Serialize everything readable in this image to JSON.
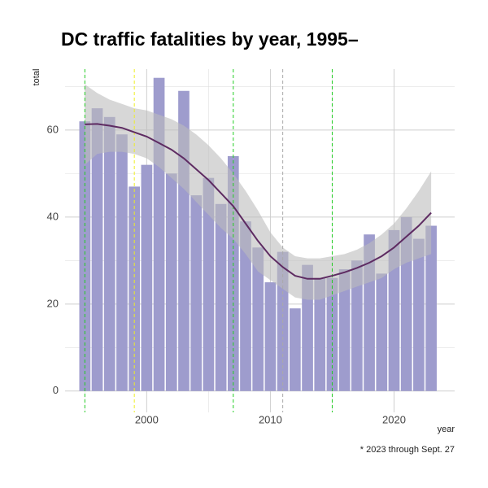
{
  "chart_data": {
    "type": "bar",
    "title": "DC traffic fatalities by year, 1995–",
    "x_label": "year",
    "y_label": "total",
    "caption": "* 2023 through Sept. 27",
    "x": [
      1995,
      1996,
      1997,
      1998,
      1999,
      2000,
      2001,
      2002,
      2003,
      2004,
      2005,
      2006,
      2007,
      2008,
      2009,
      2010,
      2011,
      2012,
      2013,
      2014,
      2015,
      2016,
      2017,
      2018,
      2019,
      2020,
      2021,
      2022,
      2023
    ],
    "values": [
      62,
      65,
      63,
      59,
      47,
      52,
      72,
      50,
      69,
      45,
      49,
      43,
      54,
      39,
      33,
      25,
      32,
      19,
      29,
      26,
      26,
      28,
      30,
      36,
      27,
      37,
      40,
      35,
      38
    ],
    "color": "#9e9ccd",
    "smooth": {
      "color": "#5e2b62",
      "band_color": "#bdbdbd",
      "values": [
        61.3,
        61.4,
        61,
        60.5,
        59.5,
        58.5,
        57,
        55.5,
        53.5,
        51,
        48.5,
        45.5,
        42.5,
        38.5,
        34.5,
        31,
        28.5,
        26.5,
        25.8,
        25.8,
        26.5,
        27.3,
        28.3,
        29.5,
        31,
        33,
        35.5,
        38,
        41
      ],
      "upper": [
        70.5,
        68.5,
        67,
        66,
        65,
        64.5,
        63.5,
        62.5,
        61,
        59,
        56.5,
        53.5,
        50,
        46,
        41.5,
        36.5,
        33,
        31,
        30.5,
        30.5,
        31,
        31.5,
        32.5,
        34,
        36,
        38.5,
        42,
        46,
        50.5
      ],
      "lower": [
        52,
        54.5,
        55,
        55,
        54.5,
        53.5,
        51.5,
        49,
        46.5,
        43.5,
        40.5,
        37.5,
        35,
        31.5,
        27.5,
        25.5,
        23.5,
        21.5,
        21,
        21,
        22,
        23,
        24,
        25,
        26,
        28,
        29.5,
        30.5,
        31.5
      ]
    },
    "vlines": [
      {
        "x": 1995,
        "color": "#22cc22"
      },
      {
        "x": 1999,
        "color": "#eeee22"
      },
      {
        "x": 2007,
        "color": "#22cc22"
      },
      {
        "x": 2011,
        "color": "#aaaaaa"
      },
      {
        "x": 2015,
        "color": "#22cc22"
      }
    ],
    "xlim": [
      1993.4,
      2024.9
    ],
    "ylim": [
      -4.9,
      74
    ],
    "xticks": [
      2000,
      2010,
      2020
    ],
    "yticks": [
      0,
      20,
      40,
      60
    ],
    "xminor": [
      1995,
      2005,
      2015
    ],
    "yminor": [
      10,
      30,
      50,
      70
    ],
    "grid": true
  }
}
